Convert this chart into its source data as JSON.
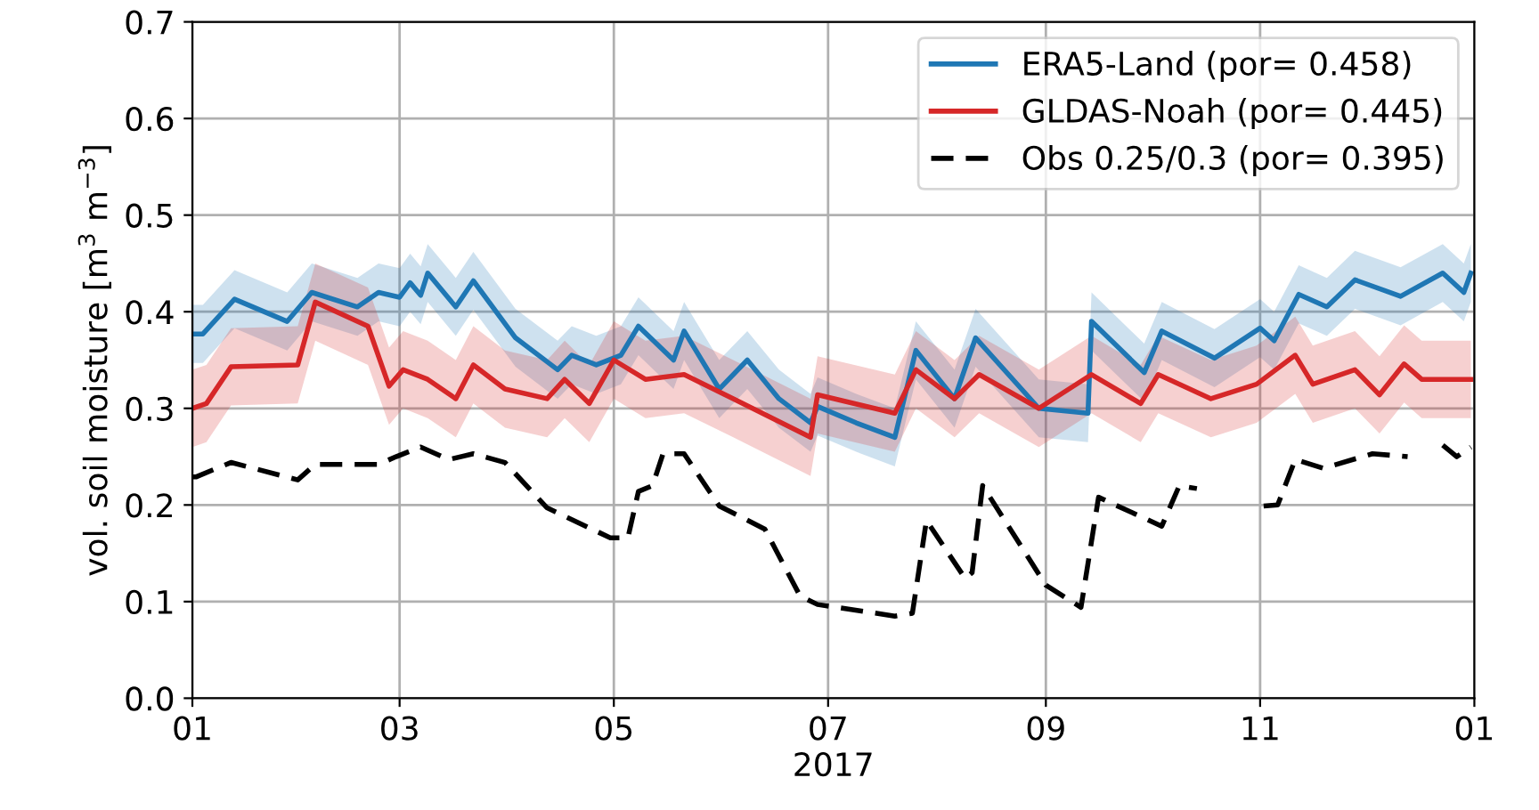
{
  "chart_data": {
    "type": "line",
    "xlabel": "2017",
    "ylabel": "vol. soil moisture [m$^{3}$ m$^{−3}$]",
    "xlim": [
      "2017-01-01",
      "2018-01-01"
    ],
    "ylim": [
      0,
      0.7
    ],
    "xticks": [
      {
        "value": "2017-01-01",
        "label": "01"
      },
      {
        "value": "2017-03-01",
        "label": "03"
      },
      {
        "value": "2017-05-01",
        "label": "05"
      },
      {
        "value": "2017-07-01",
        "label": "07"
      },
      {
        "value": "2017-09-01",
        "label": "09"
      },
      {
        "value": "2017-11-01",
        "label": "11"
      },
      {
        "value": "2018-01-01",
        "label": "01"
      }
    ],
    "yticks": [
      {
        "value": 0,
        "label": "0.0"
      },
      0.1,
      0.2,
      0.3,
      0.4,
      0.5,
      0.6,
      {
        "value": 0.7,
        "label": "0.7"
      }
    ],
    "grid": true,
    "legend": "top right",
    "series": [
      {
        "name": "ERA5-Land (por= 0.458)",
        "color": "#1f77b4",
        "line_style": "solid",
        "x": [
          "2017-01-01",
          "2017-01-04",
          "2017-01-13",
          "2017-01-28",
          "2017-02-04",
          "2017-02-17",
          "2017-02-23",
          "2017-03-01",
          "2017-03-04",
          "2017-03-07",
          "2017-03-09",
          "2017-03-17",
          "2017-03-22",
          "2017-04-03",
          "2017-04-15",
          "2017-04-19",
          "2017-04-26",
          "2017-05-03",
          "2017-05-08",
          "2017-05-18",
          "2017-05-21",
          "2017-05-31",
          "2017-06-08",
          "2017-06-17",
          "2017-06-26",
          "2017-06-28",
          "2017-07-09",
          "2017-07-20",
          "2017-07-26",
          "2017-08-06",
          "2017-08-12",
          "2017-08-30",
          "2017-09-13",
          "2017-09-14",
          "2017-09-29",
          "2017-10-04",
          "2017-10-19",
          "2017-11-01",
          "2017-11-05",
          "2017-11-12",
          "2017-11-20",
          "2017-11-28",
          "2017-12-11",
          "2017-12-23",
          "2017-12-29",
          "2017-12-31"
        ],
        "values": [
          0.377,
          0.377,
          0.413,
          0.39,
          0.42,
          0.405,
          0.42,
          0.415,
          0.43,
          0.417,
          0.44,
          0.405,
          0.432,
          0.373,
          0.34,
          0.355,
          0.345,
          0.355,
          0.385,
          0.35,
          0.38,
          0.32,
          0.35,
          0.31,
          0.285,
          0.302,
          0.285,
          0.27,
          0.36,
          0.31,
          0.373,
          0.3,
          0.295,
          0.39,
          0.337,
          0.38,
          0.352,
          0.383,
          0.37,
          0.418,
          0.405,
          0.433,
          0.416,
          0.44,
          0.42,
          0.44
        ],
        "lower": [
          0.347,
          0.347,
          0.383,
          0.36,
          0.39,
          0.375,
          0.39,
          0.385,
          0.4,
          0.387,
          0.41,
          0.375,
          0.402,
          0.343,
          0.31,
          0.325,
          0.315,
          0.325,
          0.355,
          0.32,
          0.35,
          0.29,
          0.32,
          0.28,
          0.255,
          0.272,
          0.255,
          0.24,
          0.33,
          0.28,
          0.343,
          0.27,
          0.265,
          0.36,
          0.307,
          0.35,
          0.322,
          0.353,
          0.34,
          0.388,
          0.375,
          0.403,
          0.386,
          0.41,
          0.39,
          0.41
        ],
        "upper": [
          0.407,
          0.407,
          0.443,
          0.42,
          0.45,
          0.435,
          0.45,
          0.445,
          0.46,
          0.447,
          0.47,
          0.435,
          0.462,
          0.403,
          0.37,
          0.385,
          0.375,
          0.385,
          0.415,
          0.38,
          0.41,
          0.35,
          0.38,
          0.34,
          0.315,
          0.332,
          0.315,
          0.3,
          0.39,
          0.34,
          0.403,
          0.33,
          0.325,
          0.42,
          0.367,
          0.41,
          0.382,
          0.413,
          0.4,
          0.448,
          0.435,
          0.463,
          0.446,
          0.47,
          0.45,
          0.47
        ]
      },
      {
        "name": "GLDAS-Noah (por= 0.445)",
        "color": "#d62728",
        "line_style": "solid",
        "x": [
          "2017-01-01",
          "2017-01-05",
          "2017-01-12",
          "2017-01-31",
          "2017-02-05",
          "2017-02-20",
          "2017-02-26",
          "2017-03-02",
          "2017-03-09",
          "2017-03-17",
          "2017-03-22",
          "2017-03-31",
          "2017-04-12",
          "2017-04-17",
          "2017-04-24",
          "2017-05-01",
          "2017-05-10",
          "2017-05-21",
          "2017-06-04",
          "2017-06-26",
          "2017-06-28",
          "2017-07-20",
          "2017-07-26",
          "2017-08-06",
          "2017-08-13",
          "2017-08-30",
          "2017-09-14",
          "2017-09-28",
          "2017-10-03",
          "2017-10-18",
          "2017-10-31",
          "2017-11-11",
          "2017-11-16",
          "2017-11-28",
          "2017-12-05",
          "2017-12-12",
          "2017-12-17",
          "2017-12-28",
          "2017-12-31"
        ],
        "values": [
          0.3,
          0.305,
          0.343,
          0.345,
          0.41,
          0.385,
          0.323,
          0.34,
          0.33,
          0.31,
          0.345,
          0.32,
          0.31,
          0.33,
          0.305,
          0.35,
          0.33,
          0.335,
          0.31,
          0.27,
          0.314,
          0.295,
          0.34,
          0.31,
          0.335,
          0.3,
          0.335,
          0.305,
          0.335,
          0.31,
          0.325,
          0.355,
          0.325,
          0.34,
          0.314,
          0.346,
          0.33,
          0.33,
          0.33
        ],
        "lower": [
          0.26,
          0.265,
          0.303,
          0.305,
          0.37,
          0.345,
          0.283,
          0.3,
          0.29,
          0.27,
          0.305,
          0.28,
          0.27,
          0.29,
          0.265,
          0.31,
          0.29,
          0.295,
          0.27,
          0.23,
          0.274,
          0.255,
          0.3,
          0.27,
          0.295,
          0.26,
          0.295,
          0.265,
          0.295,
          0.27,
          0.285,
          0.315,
          0.285,
          0.3,
          0.274,
          0.306,
          0.29,
          0.29,
          0.29
        ],
        "upper": [
          0.34,
          0.345,
          0.383,
          0.385,
          0.45,
          0.425,
          0.363,
          0.38,
          0.37,
          0.35,
          0.385,
          0.36,
          0.35,
          0.37,
          0.345,
          0.39,
          0.37,
          0.375,
          0.35,
          0.31,
          0.354,
          0.335,
          0.38,
          0.35,
          0.375,
          0.34,
          0.375,
          0.345,
          0.375,
          0.35,
          0.365,
          0.395,
          0.365,
          0.38,
          0.354,
          0.386,
          0.37,
          0.37,
          0.37
        ]
      },
      {
        "name": "Obs 0.25/0.3 (por= 0.395)",
        "color": "#000000",
        "line_style": "dashed",
        "x": [
          "2017-01-01",
          "2017-01-02",
          "2017-01-12",
          "2017-01-31",
          "2017-02-05",
          "2017-02-23",
          "2017-02-28",
          "2017-03-07",
          "2017-03-15",
          "2017-03-22",
          "2017-03-31",
          "2017-04-12",
          "2017-04-30",
          "2017-05-05",
          "2017-05-08",
          "2017-05-12",
          "2017-05-15",
          "2017-05-21",
          "2017-05-31",
          "2017-06-13",
          "2017-06-23",
          "2017-06-28",
          "2017-07-20",
          "2017-07-25",
          "2017-07-29",
          "2017-08-09",
          "2017-08-11",
          "2017-08-14",
          "2017-09-01",
          "2017-09-11",
          "2017-09-16",
          "2017-10-04",
          "2017-10-09",
          "2017-10-14",
          "2017-10-23",
          "2017-11-02",
          "2017-11-06",
          "2017-11-11",
          "2017-11-19",
          "2017-12-03",
          "2017-12-13",
          "2017-12-17",
          "2017-12-23",
          "2017-12-27",
          "2017-12-31"
        ],
        "values": [
          0.229,
          0.229,
          0.244,
          0.226,
          0.242,
          0.242,
          0.25,
          0.26,
          0.247,
          0.253,
          0.244,
          0.197,
          0.166,
          0.166,
          0.214,
          0.22,
          0.253,
          0.253,
          0.199,
          0.175,
          0.106,
          0.097,
          0.085,
          0.088,
          0.184,
          0.124,
          0.13,
          0.22,
          0.117,
          0.094,
          0.208,
          0.178,
          0.22,
          0.217,
          null,
          0.199,
          0.2,
          0.247,
          0.238,
          0.253,
          0.25,
          null,
          0.262,
          0.25,
          0.26
        ]
      }
    ]
  }
}
